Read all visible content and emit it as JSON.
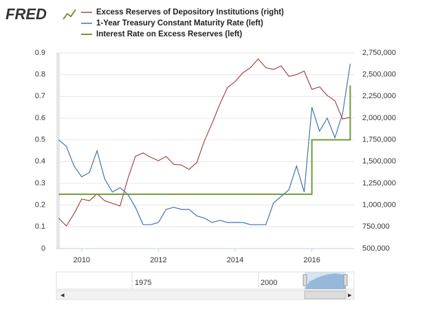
{
  "brand": "FRED",
  "chart_data": {
    "type": "line",
    "x": [
      2009.4,
      2009.6,
      2009.8,
      2010.0,
      2010.2,
      2010.4,
      2010.6,
      2010.8,
      2011.0,
      2011.2,
      2011.4,
      2011.6,
      2011.8,
      2012.0,
      2012.2,
      2012.4,
      2012.6,
      2012.8,
      2013.0,
      2013.2,
      2013.4,
      2013.6,
      2013.8,
      2014.0,
      2014.2,
      2014.4,
      2014.6,
      2014.8,
      2015.0,
      2015.2,
      2015.4,
      2015.6,
      2015.8,
      2016.0,
      2016.2,
      2016.4,
      2016.6,
      2016.8,
      2017.0
    ],
    "series": [
      {
        "name": "Excess Reserves of Depository Institutions (right)",
        "color": "#aa4643",
        "axis": "y2",
        "values": [
          850000,
          760000,
          900000,
          1070000,
          1050000,
          1130000,
          1050000,
          1020000,
          990000,
          1300000,
          1560000,
          1600000,
          1550000,
          1510000,
          1560000,
          1470000,
          1460000,
          1410000,
          1490000,
          1740000,
          1940000,
          2160000,
          2350000,
          2420000,
          2520000,
          2580000,
          2680000,
          2580000,
          2560000,
          2600000,
          2480000,
          2500000,
          2540000,
          2330000,
          2360000,
          2260000,
          2200000,
          1990000,
          2010000
        ]
      },
      {
        "name": "1-Year Treasury Constant Maturity Rate (left)",
        "color": "#4572a7",
        "values": [
          0.5,
          0.47,
          0.38,
          0.33,
          0.35,
          0.45,
          0.32,
          0.26,
          0.28,
          0.25,
          0.19,
          0.11,
          0.11,
          0.12,
          0.18,
          0.19,
          0.18,
          0.18,
          0.15,
          0.14,
          0.12,
          0.13,
          0.12,
          0.12,
          0.12,
          0.11,
          0.11,
          0.11,
          0.21,
          0.24,
          0.27,
          0.38,
          0.26,
          0.65,
          0.54,
          0.6,
          0.51,
          0.62,
          0.85
        ]
      },
      {
        "name": "Interest Rate on Excess Reserves (left)",
        "color": "#6f9a37",
        "step": true,
        "width": 2,
        "values": [
          0.25,
          0.25,
          0.25,
          0.25,
          0.25,
          0.25,
          0.25,
          0.25,
          0.25,
          0.25,
          0.25,
          0.25,
          0.25,
          0.25,
          0.25,
          0.25,
          0.25,
          0.25,
          0.25,
          0.25,
          0.25,
          0.25,
          0.25,
          0.25,
          0.25,
          0.25,
          0.25,
          0.25,
          0.25,
          0.25,
          0.25,
          0.25,
          0.25,
          0.5,
          0.5,
          0.5,
          0.5,
          0.5,
          0.75
        ]
      }
    ],
    "xlim": [
      2009.34,
      2017.1
    ],
    "xticks": [
      2010,
      2012,
      2014,
      2016
    ],
    "ylim": [
      0,
      0.9
    ],
    "yticks": [
      0.0,
      0.1,
      0.2,
      0.3,
      0.4,
      0.5,
      0.6,
      0.7,
      0.8,
      0.9
    ],
    "y2lim": [
      500000,
      2750000
    ],
    "y2ticks": [
      {
        "value": 500000,
        "label": "500,000"
      },
      {
        "value": 750000,
        "label": "750,000"
      },
      {
        "value": 1000000,
        "label": "1,000,000"
      },
      {
        "value": 1250000,
        "label": "1,250,000"
      },
      {
        "value": 1500000,
        "label": "1,500,000"
      },
      {
        "value": 1750000,
        "label": "1,750,000"
      },
      {
        "value": 2000000,
        "label": "2,000,000"
      },
      {
        "value": 2250000,
        "label": "2,250,000"
      },
      {
        "value": 2500000,
        "label": "2,500,000"
      },
      {
        "value": 2750000,
        "label": "2,750,000"
      }
    ],
    "grid": true,
    "yticks_label_fix": null
  },
  "navigator": {
    "labels": [
      "1975",
      "2000"
    ]
  }
}
